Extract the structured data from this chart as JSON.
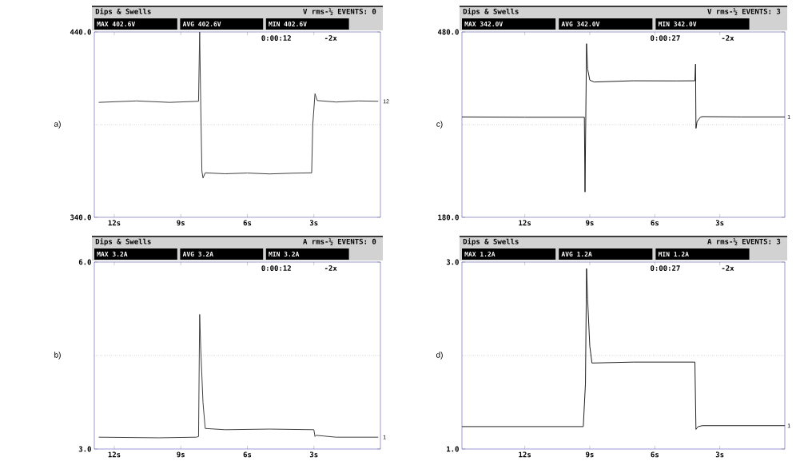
{
  "chart_data": [
    {
      "type": "line",
      "title": "Dips & Swells",
      "subtitle": "V rms-½ EVENTS: 0",
      "color": "#404040",
      "annotations": [
        "a)",
        "MAX 402.6V",
        "AVG 402.6V",
        "MIN 402.6V",
        "0:00:12",
        "-2x",
        "12"
      ],
      "x": [
        12.7,
        11,
        9.5,
        8.2,
        8.15,
        8.1,
        8.05,
        8.0,
        7.9,
        7,
        6,
        5,
        4,
        3.1,
        3.05,
        2.95,
        2.85,
        2,
        1,
        0.1
      ],
      "values": [
        402,
        402.8,
        402,
        402.6,
        440,
        400,
        365,
        361.2,
        364,
        363.5,
        363.9,
        363.4,
        363.8,
        364,
        390,
        406.7,
        403,
        402.2,
        402.8,
        402.6
      ],
      "xlim": [
        12.9,
        0
      ],
      "ylim": [
        340,
        440
      ],
      "xticks": [
        {
          "value": 12,
          "label": "12s"
        },
        {
          "value": 9,
          "label": "9s"
        },
        {
          "value": 6,
          "label": "6s"
        },
        {
          "value": 3,
          "label": "3s"
        }
      ],
      "yticks": [
        {
          "value": 340,
          "label": "340.0"
        },
        {
          "value": 440,
          "label": "440.0"
        }
      ],
      "ref_lines": [
        {
          "axis": "y",
          "value": 390,
          "line_style": "dotted"
        }
      ]
    },
    {
      "type": "line",
      "title": "Dips & Swells",
      "subtitle": "V rms-½ EVENTS: 3",
      "color": "#202020",
      "annotations": [
        "c)",
        "MAX 342.0V",
        "AVG 342.0V",
        "MIN 342.0V",
        "0:00:27",
        "-2x",
        "1"
      ],
      "x": [
        14.9,
        12,
        9.3,
        9.25,
        9.22,
        9.15,
        9.1,
        9.0,
        8.8,
        7,
        5,
        4.15,
        4.12,
        4.1,
        4.05,
        3.9,
        3.8,
        2,
        0
      ],
      "values": [
        342.5,
        342,
        342,
        342,
        221,
        461,
        420,
        402,
        399,
        401,
        400.8,
        401,
        428,
        324,
        335,
        342,
        343,
        342.5,
        342.5
      ],
      "xlim": [
        14.9,
        0
      ],
      "ylim": [
        180,
        480
      ],
      "xticks": [
        {
          "value": 12,
          "label": "12s"
        },
        {
          "value": 9,
          "label": "9s"
        },
        {
          "value": 6,
          "label": "6s"
        },
        {
          "value": 3,
          "label": "3s"
        }
      ],
      "yticks": [
        {
          "value": 180,
          "label": "180.0"
        },
        {
          "value": 480,
          "label": "480.0"
        }
      ],
      "ref_lines": [
        {
          "axis": "y",
          "value": 330,
          "line_style": "dotted"
        }
      ]
    },
    {
      "type": "line",
      "title": "Dips & Swells",
      "subtitle": "A rms-½ EVENTS: 0",
      "color": "#404040",
      "annotations": [
        "b)",
        "MAX 3.2A",
        "AVG 3.2A",
        "MIN 3.2A",
        "0:00:12",
        "-2x",
        "1"
      ],
      "x": [
        12.7,
        10,
        8.3,
        8.2,
        8.15,
        8.1,
        8.0,
        7.9,
        7,
        5,
        3.0,
        2.95,
        2.9,
        2,
        0.1
      ],
      "values": [
        3.19,
        3.18,
        3.19,
        3.2,
        5.16,
        4.6,
        3.75,
        3.33,
        3.31,
        3.32,
        3.31,
        3.2,
        3.22,
        3.19,
        3.19
      ],
      "xlim": [
        12.9,
        0
      ],
      "ylim": [
        3,
        6
      ],
      "xticks": [
        {
          "value": 12,
          "label": "12s"
        },
        {
          "value": 9,
          "label": "9s"
        },
        {
          "value": 6,
          "label": "6s"
        },
        {
          "value": 3,
          "label": "3s"
        }
      ],
      "yticks": [
        {
          "value": 3,
          "label": "3.0"
        },
        {
          "value": 6,
          "label": "6.0"
        }
      ],
      "ref_lines": [
        {
          "axis": "y",
          "value": 4.5,
          "line_style": "dotted"
        }
      ]
    },
    {
      "type": "line",
      "title": "Dips & Swells",
      "subtitle": "A rms-½ EVENTS: 3",
      "color": "#202020",
      "annotations": [
        "d)",
        "MAX 1.2A",
        "AVG 1.2A",
        "MIN 1.2A",
        "0:00:27",
        "-2x",
        "1"
      ],
      "x": [
        14.9,
        12,
        9.3,
        9.2,
        9.15,
        9.1,
        9.0,
        8.9,
        7,
        5,
        4.15,
        4.1,
        4.0,
        3.8,
        2,
        0
      ],
      "values": [
        1.24,
        1.24,
        1.24,
        1.7,
        2.93,
        2.6,
        2.1,
        1.92,
        1.93,
        1.93,
        1.93,
        1.21,
        1.24,
        1.25,
        1.25,
        1.25
      ],
      "xlim": [
        14.9,
        0
      ],
      "ylim": [
        1,
        3
      ],
      "xticks": [
        {
          "value": 12,
          "label": "12s"
        },
        {
          "value": 9,
          "label": "9s"
        },
        {
          "value": 6,
          "label": "6s"
        },
        {
          "value": 3,
          "label": "3s"
        }
      ],
      "yticks": [
        {
          "value": 1,
          "label": "1.0"
        },
        {
          "value": 3,
          "label": "3.0"
        }
      ],
      "ref_lines": [
        {
          "axis": "y",
          "value": 2,
          "line_style": "dotted"
        }
      ]
    }
  ]
}
